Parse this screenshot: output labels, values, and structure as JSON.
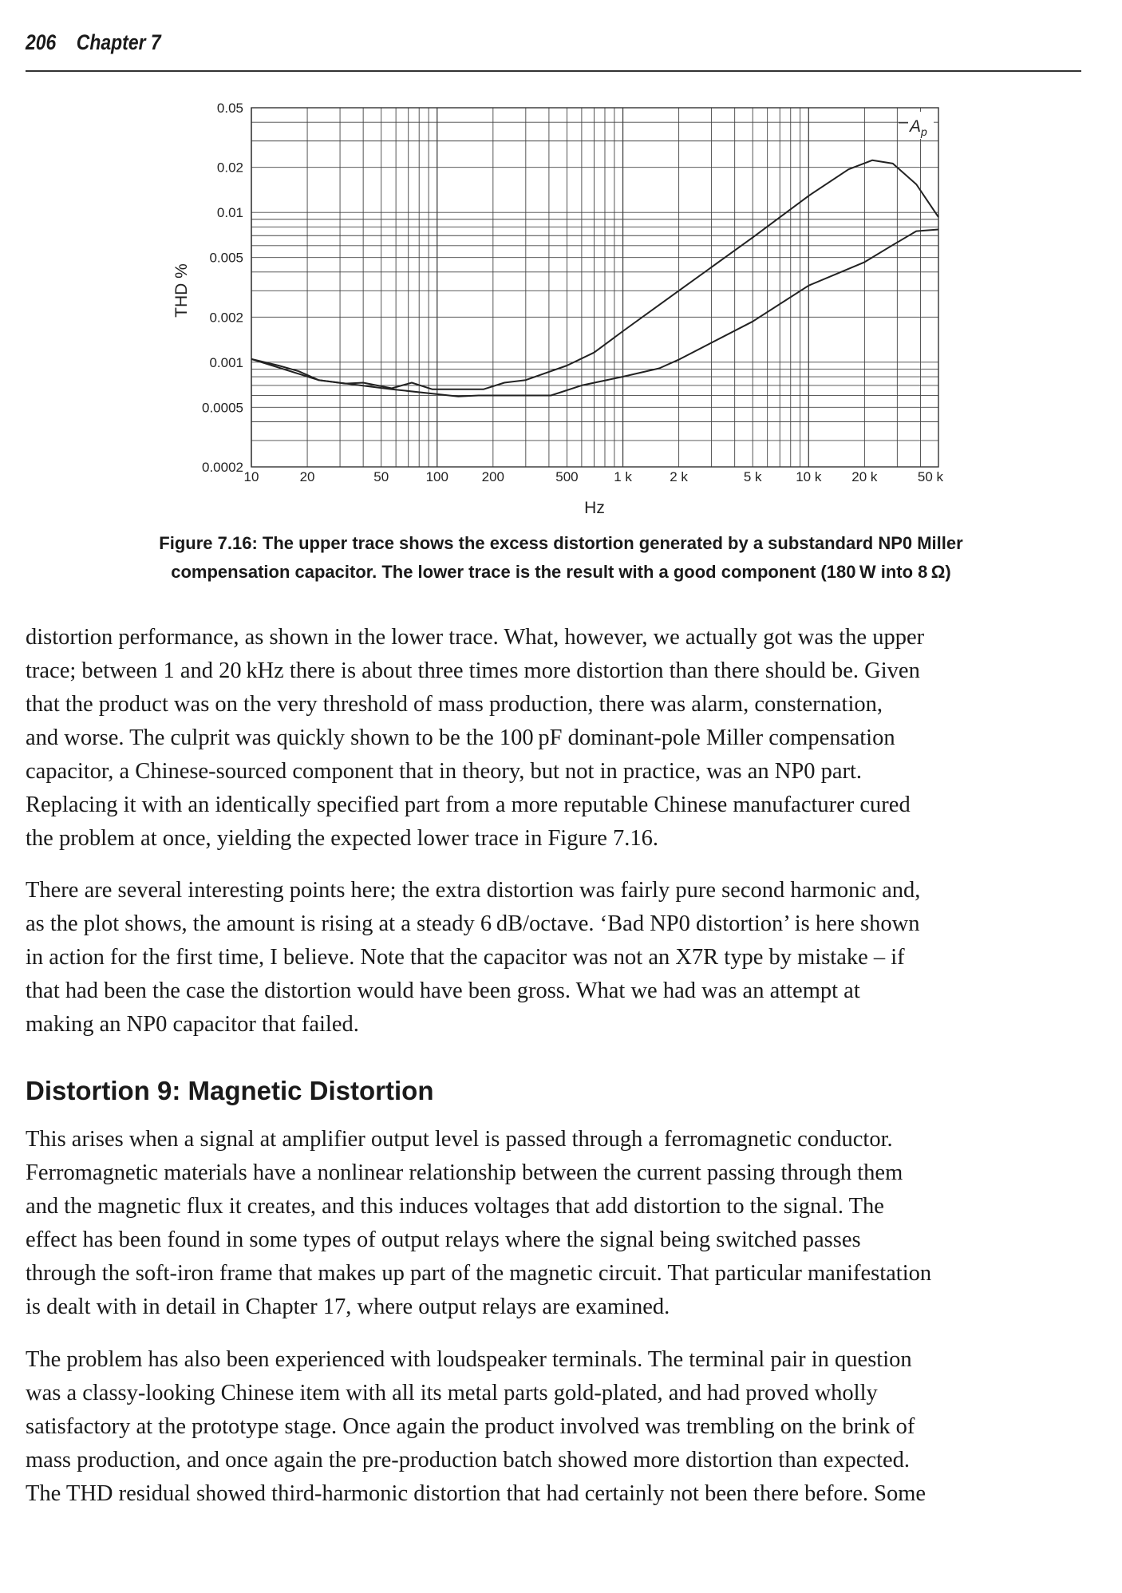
{
  "header": {
    "page_number": "206",
    "chapter": "Chapter 7"
  },
  "chart_data": {
    "type": "line",
    "xscale": "log",
    "yscale": "log",
    "xlabel": "Hz",
    "ylabel": "THD %",
    "xlim": [
      10,
      50000
    ],
    "ylim": [
      0.0002,
      0.05
    ],
    "grid": true,
    "annotation": "Ap",
    "x_ticks": [
      {
        "value": 10,
        "label": "10"
      },
      {
        "value": 20,
        "label": "20"
      },
      {
        "value": 50,
        "label": "50"
      },
      {
        "value": 100,
        "label": "100"
      },
      {
        "value": 200,
        "label": "200"
      },
      {
        "value": 500,
        "label": "500"
      },
      {
        "value": 1000,
        "label": "1 k"
      },
      {
        "value": 2000,
        "label": "2 k"
      },
      {
        "value": 5000,
        "label": "5 k"
      },
      {
        "value": 10000,
        "label": "10 k"
      },
      {
        "value": 20000,
        "label": "20 k"
      },
      {
        "value": 50000,
        "label": "50 k"
      }
    ],
    "y_ticks": [
      {
        "value": 0.05,
        "label": "0.05"
      },
      {
        "value": 0.02,
        "label": "0.02"
      },
      {
        "value": 0.01,
        "label": "0.01"
      },
      {
        "value": 0.005,
        "label": "0.005"
      },
      {
        "value": 0.002,
        "label": "0.002"
      },
      {
        "value": 0.001,
        "label": "0.001"
      },
      {
        "value": 0.0005,
        "label": "0.0005"
      },
      {
        "value": 0.0002,
        "label": "0.0002"
      }
    ],
    "series": [
      {
        "id": "upper",
        "x": [
          10,
          14,
          18,
          23,
          32,
          40,
          57,
          73,
          94,
          178,
          230,
          300,
          500,
          700,
          1000,
          2000,
          5000,
          10000,
          16400,
          22000,
          28400,
          38000,
          50000
        ],
        "y": [
          0.00105,
          0.00095,
          0.00087,
          0.00076,
          0.00072,
          0.00073,
          0.00067,
          0.00073,
          0.00066,
          0.00066,
          0.00073,
          0.00076,
          0.00095,
          0.00116,
          0.00161,
          0.003,
          0.0068,
          0.0129,
          0.0194,
          0.0223,
          0.0212,
          0.0154,
          0.0093
        ]
      },
      {
        "id": "lower",
        "x": [
          10,
          23,
          57,
          130,
          167,
          410,
          600,
          1000,
          1570,
          2000,
          5000,
          10000,
          20000,
          28000,
          38000,
          50000
        ],
        "y": [
          0.00105,
          0.00076,
          0.00066,
          0.00059,
          0.0006,
          0.0006,
          0.0007,
          0.0008,
          0.00091,
          0.00104,
          0.00187,
          0.00325,
          0.00466,
          0.006,
          0.0075,
          0.0077
        ]
      }
    ]
  },
  "caption": [
    "Figure 7.16:  The upper trace shows the excess distortion generated by a substandard NP0 Miller",
    "compensation capacitor. The lower trace is the result with a good component (180 W into 8 Ω)"
  ],
  "paragraphs": [
    [
      "distortion performance, as shown in the lower trace. What, however, we actually got was the upper",
      "trace; between 1 and 20 kHz there is about three times more distortion than there should be. Given",
      "that the product was on the very threshold of mass production, there was alarm, consternation,",
      "and worse. The culprit was quickly shown to be the 100 pF dominant-pole Miller compensation",
      "capacitor, a Chinese-sourced component that in theory, but not in practice, was an NP0 part.",
      "Replacing it with an identically specified part from a more reputable Chinese manufacturer cured",
      "the problem at once, yielding the expected lower trace in Figure 7.16."
    ],
    [
      "There are several interesting points here; the extra distortion was fairly pure second harmonic and,",
      "as the plot shows, the amount is rising at a steady 6 dB/octave. ‘Bad NP0 distortion’ is here shown",
      "in action for the first time, I believe. Note that the capacitor was not an X7R type by mistake – if",
      "that had been the case the distortion would have been gross. What we had was an attempt at",
      "making an NP0 capacitor that failed."
    ],
    [
      "This arises when a signal at amplifier output level is passed through a ferromagnetic conductor.",
      "Ferromagnetic materials have a nonlinear relationship between the current passing through them",
      "and the magnetic flux it creates, and this induces voltages that add distortion to the signal. The",
      "effect has been found in some types of output relays where the signal being switched passes",
      "through the soft-iron frame that makes up part of the magnetic circuit. That particular manifestation",
      "is dealt with in detail in Chapter 17, where output relays are examined."
    ],
    [
      "The problem has also been experienced with loudspeaker terminals. The terminal pair in question",
      "was a classy-looking Chinese item with all its metal parts gold-plated, and had proved wholly",
      "satisfactory at the prototype stage. Once again the product involved was trembling on the brink of",
      "mass production, and once again the pre-production batch showed more distortion than expected.",
      "The THD residual showed third-harmonic distortion that had certainly not been there before. Some"
    ]
  ],
  "section_heading": "Distortion 9: Magnetic Distortion"
}
